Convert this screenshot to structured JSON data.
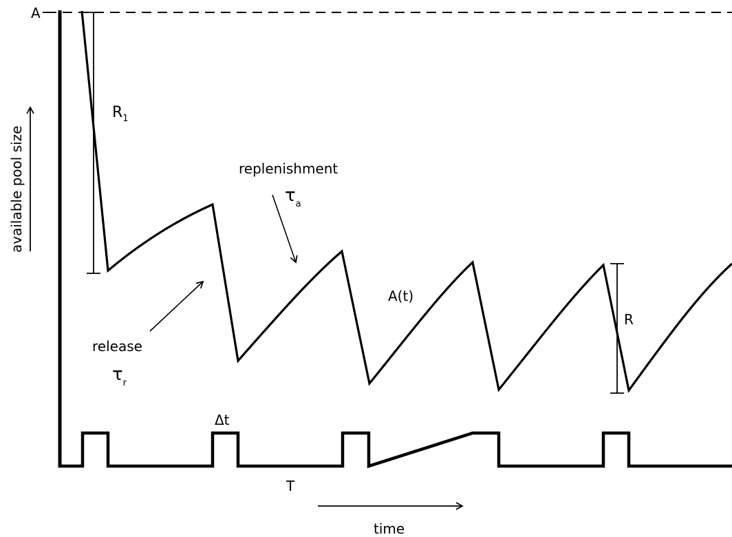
{
  "diagram": {
    "colors": {
      "stroke": "#000000",
      "background": "#ffffff"
    },
    "labels": {
      "axis_max": "A",
      "y_axis": "available pool size",
      "x_axis": "time",
      "first_release_base": "R",
      "first_release_sub": "1",
      "replenishment": "replenishment",
      "tau": "τ",
      "tau_a_sub": "a",
      "tau_r_sub": "r",
      "release": "release",
      "pool_function": "A(t)",
      "release_amount": "R",
      "pulse_width": "Δt",
      "period": "T"
    }
  }
}
